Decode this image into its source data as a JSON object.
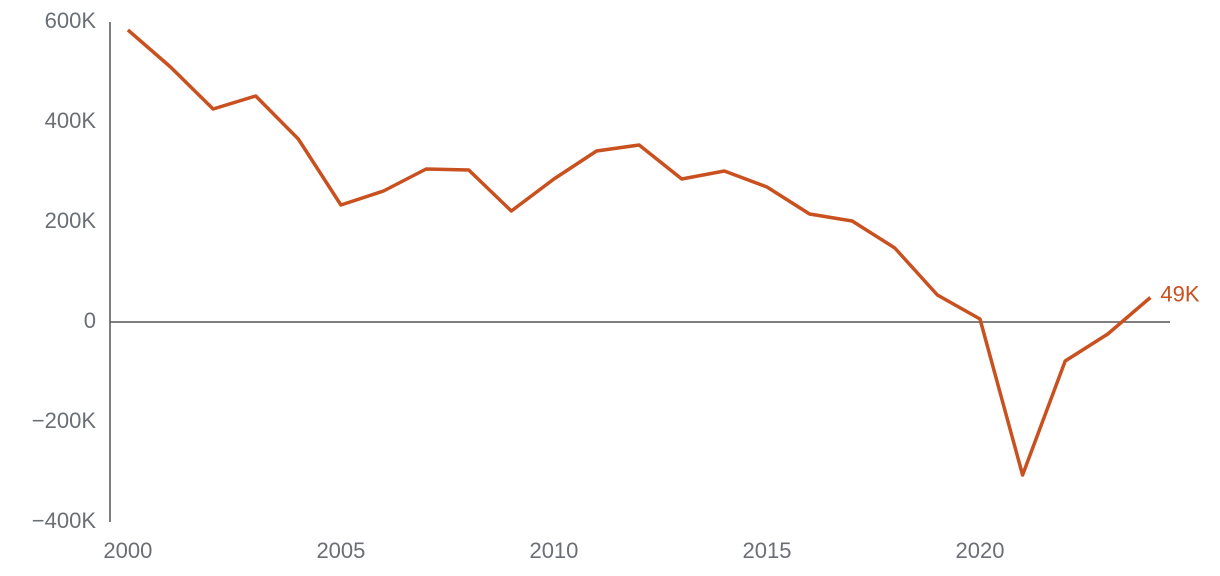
{
  "chart_data": {
    "type": "line",
    "x": [
      2000,
      2001,
      2002,
      2003,
      2004,
      2005,
      2006,
      2007,
      2008,
      2009,
      2010,
      2011,
      2012,
      2013,
      2014,
      2015,
      2016,
      2017,
      2018,
      2019,
      2020,
      2021,
      2022,
      2023,
      2024
    ],
    "series": [
      {
        "color": "#c9511f",
        "values": [
          584000,
          510000,
          426000,
          452000,
          366000,
          234000,
          262000,
          306000,
          304000,
          222000,
          286000,
          342000,
          354000,
          286000,
          302000,
          270000,
          216000,
          202000,
          148000,
          54000,
          6000,
          -306000,
          -78000,
          -24000,
          49000
        ],
        "value_labels": [
          null,
          null,
          null,
          null,
          null,
          null,
          null,
          null,
          null,
          null,
          null,
          null,
          null,
          null,
          null,
          null,
          null,
          null,
          null,
          null,
          null,
          null,
          null,
          null,
          "49K"
        ]
      }
    ],
    "xlim": [
      1999.58,
      2024.46
    ],
    "xticks": [
      2000,
      2005,
      2010,
      2015,
      2020
    ],
    "ylim": [
      -400000,
      600000
    ],
    "yticks": [
      {
        "value": -400000,
        "label": "−400K"
      },
      {
        "value": -200000,
        "label": "−200K"
      },
      {
        "value": 0,
        "label": "0"
      },
      {
        "value": 200000,
        "label": "200K"
      },
      {
        "value": 400000,
        "label": "400K"
      },
      {
        "value": 600000,
        "label": "600K"
      }
    ]
  }
}
